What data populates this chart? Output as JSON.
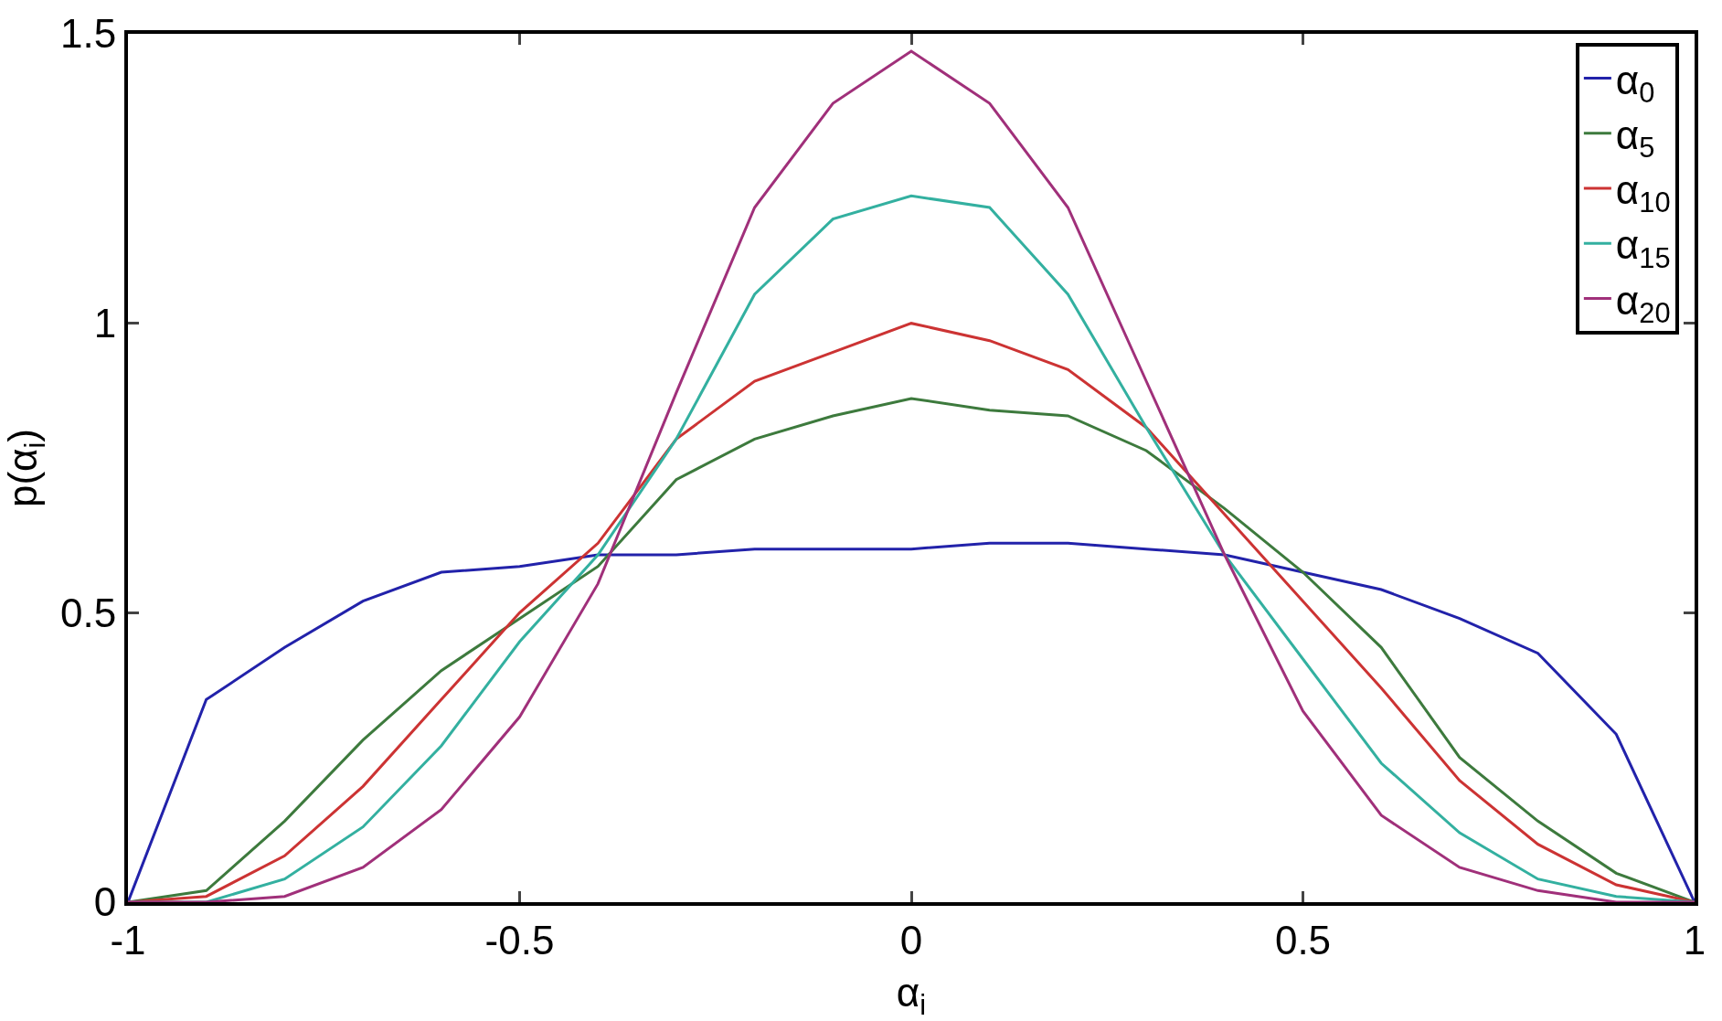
{
  "chart_data": {
    "type": "line",
    "xlabel": "α$_{i}$",
    "ylabel": "p(α$_{i}$)",
    "x": [
      -1,
      -0.9,
      -0.8,
      -0.7,
      -0.6,
      -0.5,
      -0.4,
      -0.3,
      -0.2,
      -0.1,
      0,
      0.1,
      0.2,
      0.3,
      0.4,
      0.5,
      0.6,
      0.7,
      0.8,
      0.9,
      1
    ],
    "series": [
      {
        "name": "α$_{0}$",
        "color": "#2222aa",
        "values": [
          0,
          0.35,
          0.44,
          0.52,
          0.57,
          0.58,
          0.6,
          0.6,
          0.61,
          0.61,
          0.61,
          0.62,
          0.62,
          0.61,
          0.6,
          0.57,
          0.54,
          0.49,
          0.43,
          0.29,
          0
        ]
      },
      {
        "name": "α$_{5}$",
        "color": "#3d7a3d",
        "values": [
          0,
          0.02,
          0.14,
          0.28,
          0.4,
          0.49,
          0.58,
          0.73,
          0.8,
          0.84,
          0.87,
          0.85,
          0.84,
          0.78,
          0.68,
          0.57,
          0.44,
          0.25,
          0.14,
          0.05,
          0
        ]
      },
      {
        "name": "α$_{10}$",
        "color": "#cc3333",
        "values": [
          0,
          0.01,
          0.08,
          0.2,
          0.35,
          0.5,
          0.62,
          0.8,
          0.9,
          0.95,
          1,
          0.97,
          0.92,
          0.82,
          0.67,
          0.52,
          0.37,
          0.21,
          0.1,
          0.03,
          0
        ]
      },
      {
        "name": "α$_{15}$",
        "color": "#33b0a0",
        "values": [
          0,
          0,
          0.04,
          0.13,
          0.27,
          0.45,
          0.6,
          0.8,
          1.05,
          1.18,
          1.22,
          1.2,
          1.05,
          0.82,
          0.6,
          0.42,
          0.24,
          0.12,
          0.04,
          0.01,
          0
        ]
      },
      {
        "name": "α$_{20}$",
        "color": "#a0307a",
        "values": [
          0,
          0,
          0.01,
          0.06,
          0.16,
          0.32,
          0.55,
          0.88,
          1.2,
          1.38,
          1.47,
          1.38,
          1.2,
          0.9,
          0.6,
          0.33,
          0.15,
          0.06,
          0.02,
          0,
          0
        ]
      }
    ],
    "xlim": [
      -1,
      1
    ],
    "xticks": [
      -1,
      -0.5,
      0,
      0.5,
      1
    ],
    "ylim": [
      0,
      1.5
    ],
    "yticks": [
      0,
      0.5,
      1,
      1.5
    ],
    "grid": false,
    "legend": "top right",
    "marker": "none",
    "line_style": "solid"
  }
}
